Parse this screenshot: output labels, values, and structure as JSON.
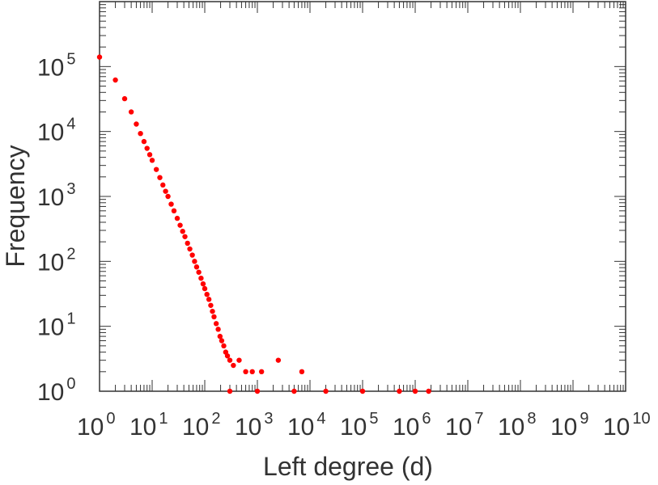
{
  "chart_data": {
    "type": "scatter",
    "xlabel": "Left degree (d)",
    "ylabel": "Frequency",
    "x_scale": "log",
    "y_scale": "log",
    "xlim": [
      1,
      10000000000
    ],
    "ylim": [
      1,
      1000000
    ],
    "x_ticks": [
      {
        "base": "10",
        "exp": "0"
      },
      {
        "base": "10",
        "exp": "1"
      },
      {
        "base": "10",
        "exp": "2"
      },
      {
        "base": "10",
        "exp": "3"
      },
      {
        "base": "10",
        "exp": "4"
      },
      {
        "base": "10",
        "exp": "5"
      },
      {
        "base": "10",
        "exp": "6"
      },
      {
        "base": "10",
        "exp": "7"
      },
      {
        "base": "10",
        "exp": "8"
      },
      {
        "base": "10",
        "exp": "9"
      },
      {
        "base": "10",
        "exp": "10"
      }
    ],
    "y_ticks": [
      {
        "base": "10",
        "exp": "0"
      },
      {
        "base": "10",
        "exp": "1"
      },
      {
        "base": "10",
        "exp": "2"
      },
      {
        "base": "10",
        "exp": "3"
      },
      {
        "base": "10",
        "exp": "4"
      },
      {
        "base": "10",
        "exp": "5"
      }
    ],
    "grid": false,
    "marker_color": "#ff0000",
    "points": [
      [
        1,
        140000
      ],
      [
        2,
        62000
      ],
      [
        3,
        32000
      ],
      [
        4,
        20000
      ],
      [
        5,
        13000
      ],
      [
        6,
        9300
      ],
      [
        7,
        7000
      ],
      [
        8,
        5500
      ],
      [
        9,
        4400
      ],
      [
        10,
        3600
      ],
      [
        12,
        2600
      ],
      [
        14,
        1950
      ],
      [
        16,
        1500
      ],
      [
        18,
        1200
      ],
      [
        20,
        1000
      ],
      [
        23,
        760
      ],
      [
        26,
        600
      ],
      [
        30,
        460
      ],
      [
        34,
        360
      ],
      [
        38,
        290
      ],
      [
        42,
        240
      ],
      [
        47,
        190
      ],
      [
        52,
        155
      ],
      [
        58,
        125
      ],
      [
        64,
        100
      ],
      [
        70,
        82
      ],
      [
        77,
        68
      ],
      [
        85,
        55
      ],
      [
        93,
        45
      ],
      [
        100,
        38
      ],
      [
        110,
        31
      ],
      [
        120,
        26
      ],
      [
        130,
        21
      ],
      [
        140,
        17
      ],
      [
        150,
        14
      ],
      [
        165,
        11
      ],
      [
        180,
        9
      ],
      [
        195,
        7
      ],
      [
        210,
        6
      ],
      [
        230,
        5
      ],
      [
        250,
        4
      ],
      [
        270,
        3.5
      ],
      [
        300,
        3
      ],
      [
        350,
        2.5
      ],
      [
        450,
        3
      ],
      [
        600,
        2
      ],
      [
        800,
        2
      ],
      [
        1200,
        2
      ],
      [
        2500,
        3
      ],
      [
        7000,
        2
      ],
      [
        300,
        1
      ],
      [
        1000,
        1
      ],
      [
        5000,
        1
      ],
      [
        20000,
        1
      ],
      [
        100000,
        1
      ],
      [
        500000,
        1
      ],
      [
        1000000,
        1
      ],
      [
        1800000,
        1
      ]
    ]
  }
}
